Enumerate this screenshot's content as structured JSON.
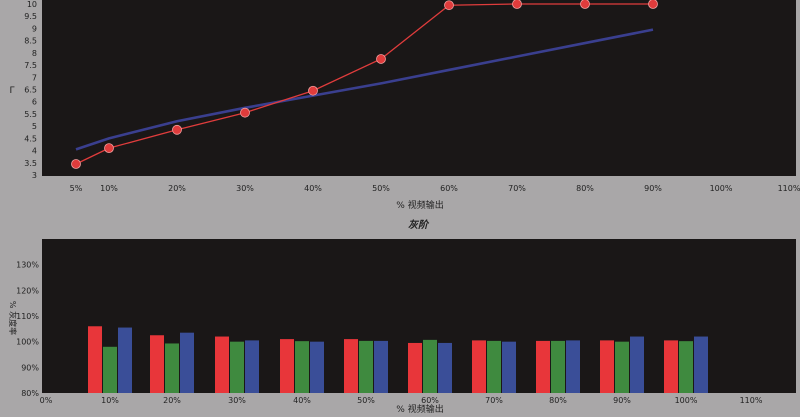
{
  "chart_data": [
    {
      "type": "line",
      "title": "",
      "xlabel": "% 视频输出",
      "ylabel": "Γ",
      "x_ticks": [
        "5%",
        "10%",
        "20%",
        "30%",
        "40%",
        "50%",
        "60%",
        "70%",
        "80%",
        "90%",
        "100%",
        "110%"
      ],
      "y_ticks": [
        "3",
        "3.5",
        "4",
        "4.5",
        "5",
        "5.5",
        "6",
        "6.5",
        "7",
        "7.5",
        "8",
        "8.5",
        "9",
        "9.5",
        "10"
      ],
      "ylim": [
        3,
        10
      ],
      "grid": false,
      "series": [
        {
          "color": "#e03c3c",
          "marker": "circle",
          "x": [
            5,
            10,
            20,
            30,
            40,
            50,
            60,
            70,
            80,
            90
          ],
          "y": [
            3.45,
            4.1,
            4.85,
            5.55,
            6.45,
            7.75,
            9.95,
            10.0,
            10.0,
            10.0
          ]
        },
        {
          "color": "#3a3f8f",
          "marker": "none",
          "x": [
            5,
            10,
            20,
            30,
            40,
            50,
            60,
            70,
            80,
            90
          ],
          "y": [
            4.05,
            4.5,
            5.2,
            5.75,
            6.25,
            6.75,
            7.3,
            7.85,
            8.4,
            8.95
          ]
        }
      ]
    },
    {
      "type": "bar",
      "title": "灰阶",
      "xlabel": "% 视频输出",
      "ylabel": "% 灰度率",
      "x_ticks": [
        "0%",
        "10%",
        "20%",
        "30%",
        "40%",
        "50%",
        "60%",
        "70%",
        "80%",
        "90%",
        "100%",
        "110%"
      ],
      "y_ticks": [
        "80%",
        "90%",
        "100%",
        "110%",
        "120%",
        "130%"
      ],
      "ylim": [
        80,
        140
      ],
      "grid": false,
      "categories": [
        10,
        20,
        30,
        40,
        50,
        60,
        70,
        80,
        90,
        100
      ],
      "series": [
        {
          "color": "#e8363a",
          "values": [
            106,
            102.5,
            102,
            101,
            101,
            99.5,
            100.5,
            100.3,
            100.5,
            100.5
          ]
        },
        {
          "color": "#3f8a3f",
          "values": [
            98,
            99.3,
            100,
            100.2,
            100.3,
            100.7,
            100.3,
            100.3,
            100,
            100.2
          ]
        },
        {
          "color": "#3a4e98",
          "values": [
            105.5,
            103.5,
            100.5,
            100,
            100.3,
            99.5,
            100,
            100.5,
            102,
            102
          ]
        }
      ]
    }
  ]
}
